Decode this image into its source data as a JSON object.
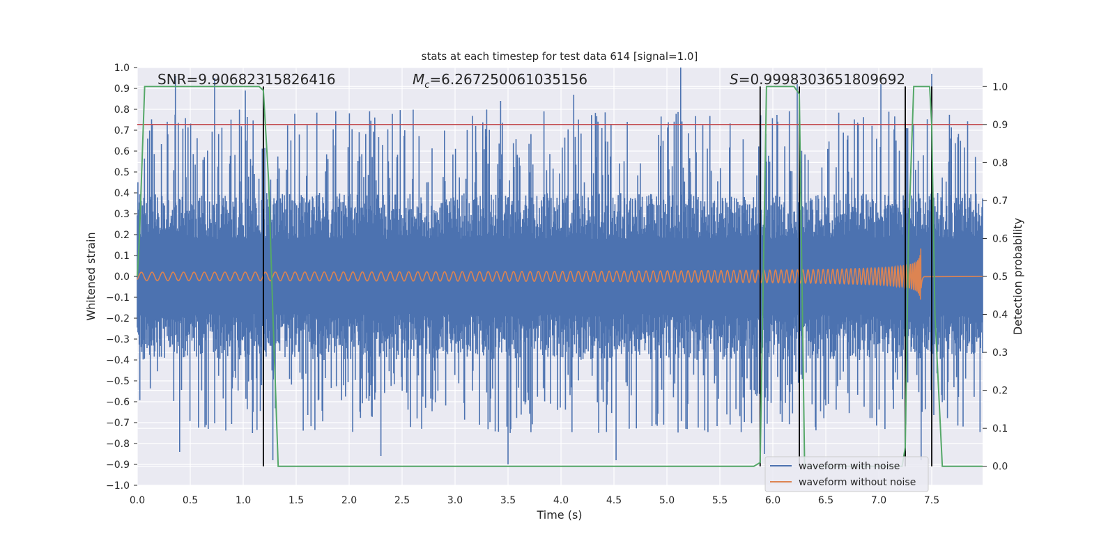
{
  "chart_data": {
    "type": "line",
    "title": "stats at each timestep for test data 614 [signal=1.0]",
    "xlabel": "Time (s)",
    "ylabel_left": "Whitened strain",
    "ylabel_right": "Detection probability",
    "xlim": [
      0.0,
      7.98
    ],
    "ylim_left": [
      -1.0,
      1.0
    ],
    "ylim_right": [
      -0.05,
      1.05
    ],
    "x_ticks": [
      "0.0",
      "0.5",
      "1.0",
      "1.5",
      "2.0",
      "2.5",
      "3.0",
      "3.5",
      "4.0",
      "4.5",
      "5.0",
      "5.5",
      "6.0",
      "6.5",
      "7.0",
      "7.5"
    ],
    "x_tick_values": [
      0.0,
      0.5,
      1.0,
      1.5,
      2.0,
      2.5,
      3.0,
      3.5,
      4.0,
      4.5,
      5.0,
      5.5,
      6.0,
      6.5,
      7.0,
      7.5
    ],
    "y_left_ticks": [
      "1.0",
      "0.9",
      "0.8",
      "0.7",
      "0.6",
      "0.5",
      "0.4",
      "0.3",
      "0.2",
      "0.1",
      "0.0",
      "−0.1",
      "−0.2",
      "−0.3",
      "−0.4",
      "−0.5",
      "−0.6",
      "−0.7",
      "−0.8",
      "−0.9",
      "−1.0"
    ],
    "y_left_tick_values": [
      1.0,
      0.9,
      0.8,
      0.7,
      0.6,
      0.5,
      0.4,
      0.3,
      0.2,
      0.1,
      0.0,
      -0.1,
      -0.2,
      -0.3,
      -0.4,
      -0.5,
      -0.6,
      -0.7,
      -0.8,
      -0.9,
      -1.0
    ],
    "y_right_ticks": [
      "1.0",
      "0.9",
      "0.8",
      "0.7",
      "0.6",
      "0.5",
      "0.4",
      "0.3",
      "0.2",
      "0.1",
      "0.0"
    ],
    "y_right_tick_values": [
      1.0,
      0.9,
      0.8,
      0.7,
      0.6,
      0.5,
      0.4,
      0.3,
      0.2,
      0.1,
      0.0
    ],
    "annotations": {
      "snr_text": "SNR=9.90682315826416",
      "mc_symbol": "M",
      "mc_subscript": "c",
      "mc_value": "=6.267250061035156",
      "s_symbol": "S",
      "s_value": "=0.9998303651809692"
    },
    "legend": {
      "placement": "lower-right",
      "entries": [
        "waveform with noise",
        "waveform without noise"
      ]
    },
    "threshold_right_axis": 0.9,
    "vertical_lines_x": [
      1.19,
      5.88,
      6.25,
      7.25,
      7.5
    ],
    "noise_series": {
      "name": "waveform with noise",
      "color": "#4c72b0",
      "x_range": [
        0.0,
        7.98
      ],
      "peak_max": [
        0.96,
        0.95,
        0.89,
        0.87,
        0.84,
        1.0,
        0.92,
        0.92,
        0.97
      ],
      "peak_min": [
        -0.84,
        -0.88,
        -0.86,
        -0.9,
        -0.88,
        -0.85,
        -0.88
      ],
      "body_amplitude": 0.4
    },
    "clean_series": {
      "name": "waveform without noise",
      "color": "#dd8452",
      "start_amplitude": 0.02,
      "merger_time": 7.4,
      "peak_max": 0.26,
      "peak_min": -0.22,
      "end_time": 7.43
    },
    "probability_series": {
      "color": "#55a868",
      "x": [
        0.0,
        0.02,
        0.07,
        0.15,
        1.15,
        1.19,
        1.24,
        1.28,
        1.33,
        5.82,
        5.88,
        5.94,
        6.2,
        6.25,
        6.3,
        7.22,
        7.25,
        7.28,
        7.33,
        7.48,
        7.5,
        7.53,
        7.6,
        7.98
      ],
      "y": [
        0.5,
        0.6,
        1.0,
        1.0,
        1.0,
        0.99,
        0.75,
        0.4,
        0.0,
        0.0,
        0.01,
        1.0,
        1.0,
        0.98,
        0.0,
        0.0,
        0.05,
        0.6,
        1.0,
        1.0,
        0.9,
        0.4,
        0.0,
        0.0
      ]
    },
    "colors": {
      "background": "#eaeaf2",
      "grid": "#ffffff",
      "threshold": "#c44e52",
      "vlines": "#000000"
    },
    "grid": true
  }
}
